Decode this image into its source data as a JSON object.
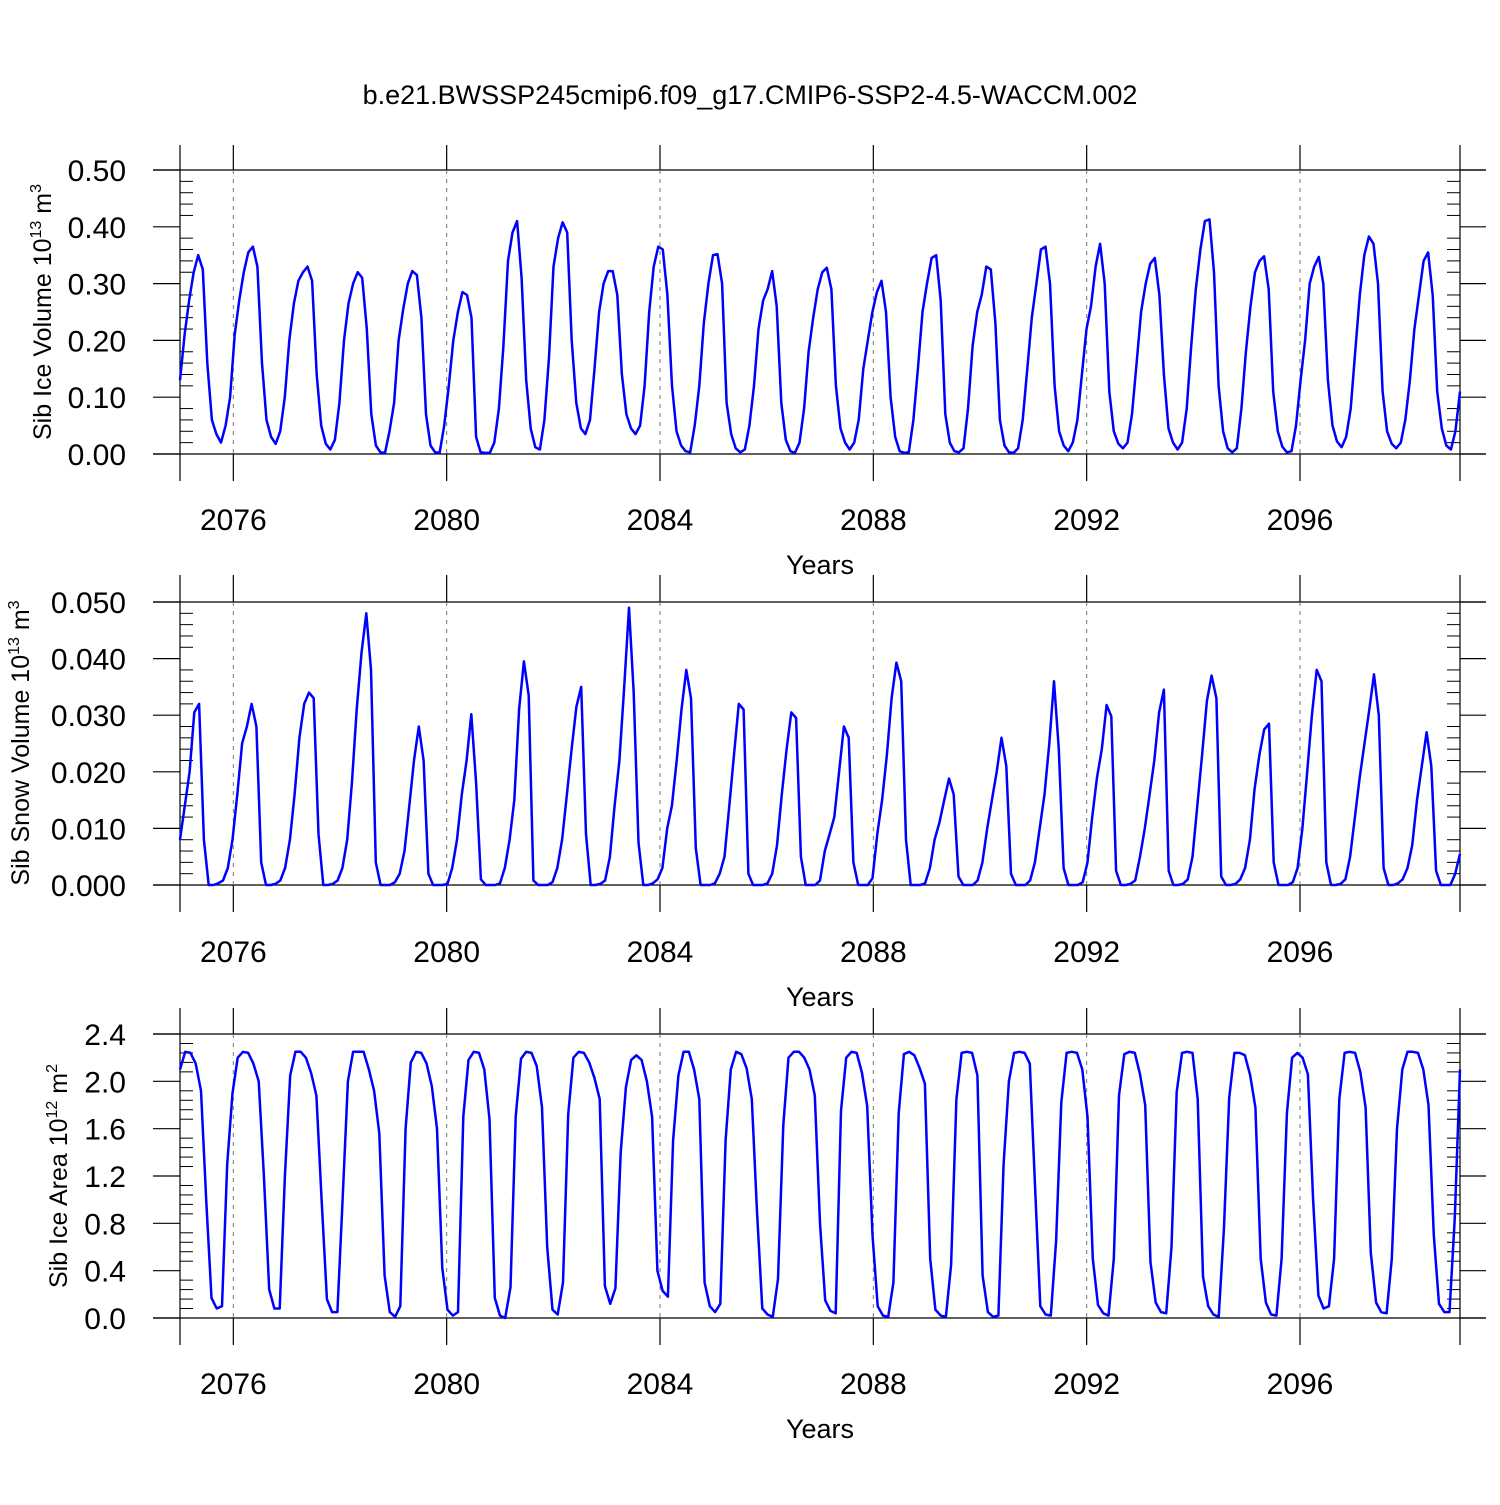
{
  "figure": {
    "title": "b.e21.BWSSP245cmip6.f09_g17.CMIP6-SSP2-4.5-WACCM.002"
  },
  "chart_data": [
    {
      "type": "line",
      "title": "",
      "xlabel": "Years",
      "ylabel": "Sib Ice Volume 10",
      "ylabel_exponent": "13",
      "ylabel_unit": " m",
      "ylabel_unit_exponent": "3",
      "xlim": [
        2075.0,
        2099.0
      ],
      "ylim": [
        0.0,
        0.5
      ],
      "x_ticks": [
        2076,
        2080,
        2084,
        2088,
        2092,
        2096
      ],
      "y_ticks": [
        "0.00",
        "0.10",
        "0.20",
        "0.30",
        "0.40",
        "0.50"
      ],
      "y_ticks_values": [
        0.0,
        0.1,
        0.2,
        0.3,
        0.4,
        0.5
      ],
      "grid": "vertical dashed at major x ticks",
      "line_color": "#0000ff",
      "series": [
        {
          "x_start": 2075.0,
          "x_step": 0.0833333,
          "values": [
            0.13,
            0.21,
            0.27,
            0.32,
            0.35,
            0.325,
            0.16,
            0.06,
            0.035,
            0.02,
            0.05,
            0.1,
            0.21,
            0.27,
            0.32,
            0.355,
            0.365,
            0.33,
            0.16,
            0.06,
            0.03,
            0.018,
            0.04,
            0.1,
            0.2,
            0.265,
            0.305,
            0.32,
            0.33,
            0.305,
            0.14,
            0.05,
            0.018,
            0.008,
            0.025,
            0.09,
            0.2,
            0.265,
            0.3,
            0.32,
            0.31,
            0.22,
            0.07,
            0.015,
            0.003,
            0.002,
            0.04,
            0.09,
            0.2,
            0.255,
            0.3,
            0.322,
            0.315,
            0.24,
            0.07,
            0.015,
            0.003,
            0.002,
            0.05,
            0.12,
            0.2,
            0.25,
            0.285,
            0.28,
            0.24,
            0.03,
            0.003,
            0.002,
            0.002,
            0.02,
            0.08,
            0.19,
            0.34,
            0.39,
            0.41,
            0.31,
            0.13,
            0.045,
            0.012,
            0.008,
            0.06,
            0.17,
            0.33,
            0.38,
            0.408,
            0.39,
            0.2,
            0.09,
            0.045,
            0.035,
            0.06,
            0.15,
            0.25,
            0.3,
            0.322,
            0.322,
            0.28,
            0.14,
            0.07,
            0.045,
            0.035,
            0.05,
            0.12,
            0.25,
            0.33,
            0.365,
            0.36,
            0.28,
            0.12,
            0.04,
            0.015,
            0.005,
            0.003,
            0.05,
            0.12,
            0.23,
            0.3,
            0.35,
            0.352,
            0.3,
            0.09,
            0.035,
            0.01,
            0.003,
            0.008,
            0.05,
            0.12,
            0.22,
            0.27,
            0.29,
            0.322,
            0.26,
            0.09,
            0.025,
            0.005,
            0.002,
            0.02,
            0.08,
            0.18,
            0.24,
            0.29,
            0.32,
            0.328,
            0.29,
            0.12,
            0.045,
            0.02,
            0.008,
            0.02,
            0.06,
            0.15,
            0.2,
            0.25,
            0.285,
            0.305,
            0.25,
            0.1,
            0.03,
            0.005,
            0.002,
            0.003,
            0.06,
            0.15,
            0.25,
            0.3,
            0.345,
            0.35,
            0.27,
            0.07,
            0.02,
            0.005,
            0.003,
            0.01,
            0.08,
            0.19,
            0.25,
            0.28,
            0.33,
            0.325,
            0.23,
            0.06,
            0.015,
            0.003,
            0.002,
            0.01,
            0.06,
            0.15,
            0.24,
            0.3,
            0.36,
            0.365,
            0.3,
            0.12,
            0.04,
            0.015,
            0.005,
            0.02,
            0.06,
            0.14,
            0.22,
            0.26,
            0.33,
            0.37,
            0.3,
            0.11,
            0.04,
            0.018,
            0.01,
            0.02,
            0.07,
            0.16,
            0.25,
            0.3,
            0.335,
            0.345,
            0.28,
            0.14,
            0.045,
            0.02,
            0.008,
            0.02,
            0.08,
            0.19,
            0.29,
            0.36,
            0.41,
            0.413,
            0.32,
            0.12,
            0.04,
            0.01,
            0.003,
            0.01,
            0.08,
            0.18,
            0.26,
            0.32,
            0.34,
            0.348,
            0.29,
            0.11,
            0.04,
            0.013,
            0.003,
            0.005,
            0.05,
            0.13,
            0.2,
            0.3,
            0.33,
            0.347,
            0.3,
            0.13,
            0.05,
            0.022,
            0.012,
            0.03,
            0.08,
            0.18,
            0.28,
            0.35,
            0.383,
            0.37,
            0.3,
            0.11,
            0.04,
            0.018,
            0.01,
            0.02,
            0.06,
            0.13,
            0.22,
            0.28,
            0.34,
            0.355,
            0.28,
            0.11,
            0.045,
            0.015,
            0.008,
            0.04,
            0.11
          ]
        }
      ]
    },
    {
      "type": "line",
      "title": "",
      "xlabel": "Years",
      "ylabel": "Sib Snow Volume 10",
      "ylabel_exponent": "13",
      "ylabel_unit": " m",
      "ylabel_unit_exponent": "3",
      "xlim": [
        2075.0,
        2099.0
      ],
      "ylim": [
        0.0,
        0.05
      ],
      "x_ticks": [
        2076,
        2080,
        2084,
        2088,
        2092,
        2096
      ],
      "y_ticks": [
        "0.000",
        "0.010",
        "0.020",
        "0.030",
        "0.040",
        "0.050"
      ],
      "y_ticks_values": [
        0.0,
        0.01,
        0.02,
        0.03,
        0.04,
        0.05
      ],
      "grid": "vertical dashed at major x ticks",
      "line_color": "#0000ff",
      "series": [
        {
          "x_start": 2075.0,
          "x_step": 0.0833333,
          "values": [
            0.008,
            0.014,
            0.02,
            0.0305,
            0.032,
            0.008,
            0.0,
            0.0,
            0.0003,
            0.0008,
            0.003,
            0.008,
            0.016,
            0.025,
            0.028,
            0.032,
            0.028,
            0.004,
            0.0,
            0.0,
            0.0002,
            0.0008,
            0.003,
            0.008,
            0.016,
            0.026,
            0.032,
            0.034,
            0.033,
            0.009,
            0.0,
            0.0,
            0.0002,
            0.0008,
            0.003,
            0.008,
            0.018,
            0.031,
            0.041,
            0.048,
            0.038,
            0.004,
            0.0,
            0.0,
            0.0,
            0.0005,
            0.002,
            0.006,
            0.014,
            0.022,
            0.028,
            0.022,
            0.002,
            0.0,
            0.0,
            0.0,
            0.0002,
            0.003,
            0.008,
            0.016,
            0.022,
            0.0302,
            0.018,
            0.001,
            0.0,
            0.0,
            0.0,
            0.0003,
            0.003,
            0.008,
            0.015,
            0.031,
            0.0395,
            0.0335,
            0.0008,
            0.0,
            0.0,
            0.0,
            0.0005,
            0.003,
            0.008,
            0.016,
            0.024,
            0.0315,
            0.035,
            0.009,
            0.0,
            0.0,
            0.0002,
            0.0008,
            0.005,
            0.014,
            0.022,
            0.035,
            0.049,
            0.034,
            0.0075,
            0.0,
            0.0,
            0.0003,
            0.001,
            0.003,
            0.01,
            0.014,
            0.022,
            0.031,
            0.038,
            0.033,
            0.0065,
            0.0,
            0.0,
            0.0,
            0.0003,
            0.002,
            0.005,
            0.014,
            0.023,
            0.032,
            0.031,
            0.002,
            0.0,
            0.0,
            0.0,
            0.0003,
            0.002,
            0.007,
            0.016,
            0.024,
            0.0305,
            0.0295,
            0.005,
            0.0,
            0.0,
            0.0,
            0.0008,
            0.006,
            0.009,
            0.012,
            0.02,
            0.028,
            0.026,
            0.004,
            0.0,
            0.0,
            0.0,
            0.0012,
            0.009,
            0.015,
            0.023,
            0.033,
            0.0393,
            0.036,
            0.008,
            0.0,
            0.0,
            0.0,
            0.0003,
            0.003,
            0.008,
            0.011,
            0.015,
            0.0188,
            0.016,
            0.0015,
            0.0,
            0.0,
            0.0,
            0.0008,
            0.004,
            0.01,
            0.015,
            0.02,
            0.026,
            0.021,
            0.002,
            0.0,
            0.0,
            0.0,
            0.0008,
            0.004,
            0.01,
            0.016,
            0.025,
            0.036,
            0.024,
            0.003,
            0.0,
            0.0,
            0.0,
            0.0005,
            0.004,
            0.012,
            0.019,
            0.024,
            0.0318,
            0.0298,
            0.0025,
            0.0,
            0.0,
            0.0002,
            0.0008,
            0.005,
            0.01,
            0.016,
            0.022,
            0.0305,
            0.0345,
            0.0025,
            0.0,
            0.0,
            0.0002,
            0.001,
            0.005,
            0.014,
            0.023,
            0.0325,
            0.037,
            0.033,
            0.0015,
            0.0,
            0.0,
            0.0002,
            0.001,
            0.003,
            0.008,
            0.017,
            0.023,
            0.0275,
            0.0285,
            0.004,
            0.0,
            0.0,
            0.0,
            0.0005,
            0.003,
            0.01,
            0.02,
            0.03,
            0.038,
            0.036,
            0.004,
            0.0,
            0.0,
            0.0002,
            0.001,
            0.005,
            0.012,
            0.019,
            0.025,
            0.031,
            0.0372,
            0.03,
            0.003,
            0.0,
            0.0,
            0.0003,
            0.001,
            0.003,
            0.007,
            0.015,
            0.021,
            0.027,
            0.021,
            0.0025,
            0.0,
            0.0,
            0.0,
            0.002,
            0.0055
          ]
        }
      ]
    },
    {
      "type": "line",
      "title": "",
      "xlabel": "Years",
      "ylabel": "Sib Ice Area 10",
      "ylabel_exponent": "12",
      "ylabel_unit": " m",
      "ylabel_unit_exponent": "2",
      "xlim": [
        2075.0,
        2099.0
      ],
      "ylim": [
        0.0,
        2.4
      ],
      "x_ticks": [
        2076,
        2080,
        2084,
        2088,
        2092,
        2096
      ],
      "y_ticks": [
        "0.0",
        "0.4",
        "0.8",
        "1.2",
        "1.6",
        "2.0",
        "2.4"
      ],
      "y_ticks_values": [
        0.0,
        0.4,
        0.8,
        1.2,
        1.6,
        2.0,
        2.4
      ],
      "grid": "vertical dashed at major x ticks",
      "line_color": "#0000ff",
      "series": [
        {
          "x_start": 2075.0,
          "x_step": 0.0833333,
          "values": [
            2.1,
            2.25,
            2.24,
            2.15,
            1.92,
            1.0,
            0.17,
            0.08,
            0.1,
            1.3,
            1.9,
            2.2,
            2.25,
            2.24,
            2.15,
            2.0,
            1.2,
            0.24,
            0.08,
            0.08,
            1.2,
            2.05,
            2.25,
            2.25,
            2.2,
            2.07,
            1.88,
            1.0,
            0.16,
            0.05,
            0.05,
            1.0,
            2.0,
            2.25,
            2.25,
            2.25,
            2.1,
            1.92,
            1.56,
            0.36,
            0.05,
            0.01,
            0.1,
            1.6,
            2.16,
            2.25,
            2.24,
            2.15,
            1.96,
            1.6,
            0.42,
            0.07,
            0.02,
            0.05,
            1.7,
            2.18,
            2.25,
            2.24,
            2.1,
            1.68,
            0.17,
            0.02,
            0.0,
            0.26,
            1.7,
            2.19,
            2.25,
            2.24,
            2.13,
            1.78,
            0.6,
            0.07,
            0.03,
            0.3,
            1.72,
            2.2,
            2.25,
            2.24,
            2.16,
            2.03,
            1.85,
            0.27,
            0.12,
            0.25,
            1.4,
            1.95,
            2.18,
            2.22,
            2.18,
            2.0,
            1.7,
            0.4,
            0.23,
            0.18,
            1.5,
            2.05,
            2.25,
            2.25,
            2.1,
            1.85,
            0.3,
            0.1,
            0.05,
            0.12,
            1.5,
            2.1,
            2.25,
            2.23,
            2.11,
            1.85,
            0.9,
            0.08,
            0.03,
            0.01,
            0.33,
            1.63,
            2.2,
            2.25,
            2.25,
            2.2,
            2.1,
            1.88,
            0.8,
            0.15,
            0.06,
            0.04,
            1.75,
            2.2,
            2.25,
            2.24,
            2.07,
            1.79,
            0.7,
            0.1,
            0.02,
            0.01,
            0.3,
            1.73,
            2.23,
            2.25,
            2.22,
            2.11,
            1.98,
            0.5,
            0.07,
            0.02,
            0.01,
            0.45,
            1.85,
            2.24,
            2.25,
            2.24,
            2.05,
            0.36,
            0.05,
            0.01,
            0.02,
            1.3,
            2.0,
            2.24,
            2.25,
            2.24,
            2.15,
            1.1,
            0.1,
            0.03,
            0.02,
            0.65,
            1.82,
            2.24,
            2.25,
            2.24,
            2.1,
            1.7,
            0.5,
            0.11,
            0.04,
            0.02,
            0.5,
            1.88,
            2.23,
            2.25,
            2.24,
            2.06,
            1.8,
            0.47,
            0.13,
            0.05,
            0.04,
            0.6,
            1.91,
            2.24,
            2.25,
            2.24,
            1.85,
            0.35,
            0.1,
            0.03,
            0.01,
            0.75,
            1.86,
            2.24,
            2.24,
            2.22,
            2.05,
            1.78,
            0.5,
            0.13,
            0.03,
            0.02,
            0.5,
            1.73,
            2.2,
            2.24,
            2.2,
            2.06,
            1.0,
            0.19,
            0.08,
            0.1,
            0.5,
            1.85,
            2.24,
            2.25,
            2.24,
            2.08,
            1.78,
            0.55,
            0.13,
            0.05,
            0.04,
            0.5,
            1.6,
            2.1,
            2.25,
            2.25,
            2.24,
            2.1,
            1.8,
            0.7,
            0.12,
            0.05,
            0.05,
            0.85,
            2.1
          ]
        }
      ]
    }
  ]
}
